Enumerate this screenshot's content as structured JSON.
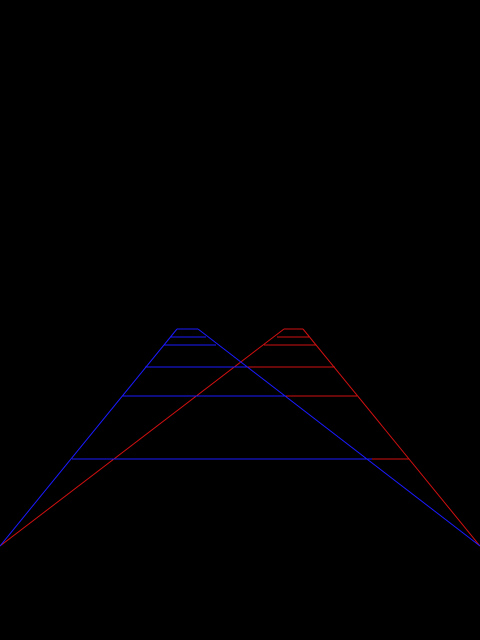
{
  "colors": {
    "background": "#000000",
    "left_road": "#1a1aff",
    "right_road": "#d01010"
  },
  "scene": {
    "description_tag": "stereo-wireframe-road",
    "rung_count": 6
  }
}
